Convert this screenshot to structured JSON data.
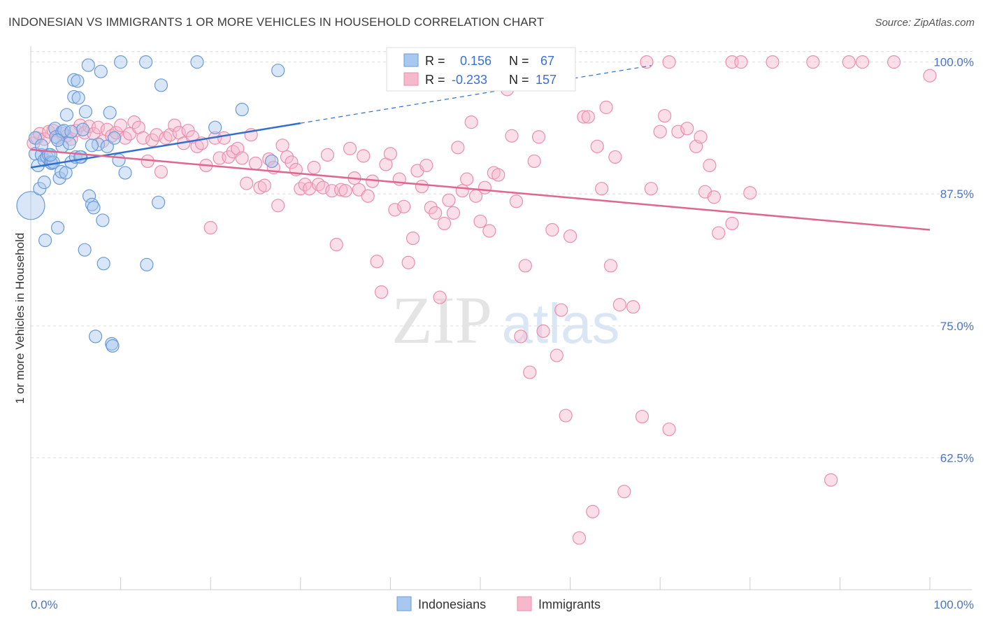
{
  "title": "INDONESIAN VS IMMIGRANTS 1 OR MORE VEHICLES IN HOUSEHOLD CORRELATION CHART",
  "source": "Source: ZipAtlas.com",
  "watermark": {
    "zip": "ZIP",
    "atlas": "atlas"
  },
  "colors": {
    "blue_fill": "#a9c8f0",
    "blue_stroke": "#6a9ad8",
    "blue_line": "#2f6fd0",
    "pink_fill": "#f6b8cb",
    "pink_stroke": "#ea8eab",
    "pink_line": "#e0668f",
    "grid": "#dddddd",
    "label_blue": "#4a74c9"
  },
  "stats": {
    "blue": {
      "r_label": "R =",
      "r_value": "0.156",
      "n_label": "N =",
      "n_value": "67"
    },
    "pink": {
      "r_label": "R =",
      "r_value": "-0.233",
      "n_label": "N =",
      "n_value": "157"
    }
  },
  "chart_data": {
    "type": "scatter",
    "title": "INDONESIAN VS IMMIGRANTS 1 OR MORE VEHICLES IN HOUSEHOLD CORRELATION CHART",
    "xlabel": "",
    "ylabel": "1 or more Vehicles in Household",
    "xlim": [
      0,
      100
    ],
    "ylim": [
      50,
      101.5
    ],
    "x_tick_labels": [
      "0.0%",
      "100.0%"
    ],
    "y_ticks": [
      62.5,
      75.0,
      87.5,
      100.0
    ],
    "y_tick_labels": [
      "62.5%",
      "75.0%",
      "87.5%",
      "100.0%"
    ],
    "grid": true,
    "legend_position": "bottom-center",
    "series": [
      {
        "name": "Indonesians",
        "trend": {
          "x": [
            0,
            30
          ],
          "y": [
            90.0,
            94.2
          ],
          "dashed_to": [
            69,
            100
          ]
        },
        "points": [
          [
            0,
            86.4
          ],
          [
            0.5,
            92.8
          ],
          [
            0.5,
            91.3
          ],
          [
            0.8,
            90.2
          ],
          [
            1.0,
            88.0
          ],
          [
            1.2,
            91.2
          ],
          [
            1.5,
            90.7
          ],
          [
            1.5,
            88.6
          ],
          [
            1.6,
            83.1
          ],
          [
            1.8,
            91.0
          ],
          [
            2.0,
            91.2
          ],
          [
            2.2,
            90.5
          ],
          [
            2.3,
            90.4
          ],
          [
            2.5,
            90.5
          ],
          [
            2.7,
            93.7
          ],
          [
            2.8,
            92.9
          ],
          [
            3.0,
            84.3
          ],
          [
            3.2,
            89.0
          ],
          [
            3.4,
            89.6
          ],
          [
            3.5,
            93.4
          ],
          [
            3.5,
            92.0
          ],
          [
            3.7,
            93.5
          ],
          [
            3.9,
            89.5
          ],
          [
            4.0,
            95.0
          ],
          [
            4.3,
            92.3
          ],
          [
            4.5,
            90.5
          ],
          [
            4.8,
            96.7
          ],
          [
            4.8,
            98.3
          ],
          [
            5.0,
            91.0
          ],
          [
            5.2,
            98.2
          ],
          [
            5.3,
            96.6
          ],
          [
            5.6,
            91.0
          ],
          [
            5.8,
            93.6
          ],
          [
            6.0,
            82.2
          ],
          [
            6.1,
            95.3
          ],
          [
            6.4,
            99.7
          ],
          [
            6.5,
            87.3
          ],
          [
            6.8,
            86.5
          ],
          [
            7.0,
            86.2
          ],
          [
            7.2,
            74.0
          ],
          [
            7.5,
            92.2
          ],
          [
            7.8,
            99.1
          ],
          [
            8.0,
            85.0
          ],
          [
            8.1,
            80.9
          ],
          [
            8.5,
            92.0
          ],
          [
            8.8,
            95.2
          ],
          [
            9.0,
            73.3
          ],
          [
            9.1,
            73.1
          ],
          [
            9.3,
            92.8
          ],
          [
            9.8,
            90.7
          ],
          [
            10.0,
            100.0
          ],
          [
            10.5,
            89.5
          ],
          [
            12.8,
            100.0
          ],
          [
            12.9,
            80.8
          ],
          [
            14.2,
            86.7
          ],
          [
            14.5,
            97.8
          ],
          [
            18.5,
            100.0
          ],
          [
            20.5,
            93.8
          ],
          [
            23.5,
            95.5
          ],
          [
            26.8,
            90.6
          ],
          [
            27.5,
            99.2
          ],
          [
            4.5,
            93.4
          ],
          [
            3.0,
            92.6
          ],
          [
            2.2,
            91.2
          ],
          [
            1.2,
            92.1
          ],
          [
            5.5,
            91.0
          ],
          [
            6.8,
            92.1
          ]
        ]
      },
      {
        "name": "Immigrants",
        "trend": {
          "x": [
            0,
            100
          ],
          "y": [
            91.7,
            84.1
          ]
        },
        "points": [
          [
            0.3,
            92.3
          ],
          [
            0.7,
            92.8
          ],
          [
            1.0,
            93.2
          ],
          [
            1.5,
            92.7
          ],
          [
            2.0,
            93.4
          ],
          [
            2.5,
            93.5
          ],
          [
            3.0,
            92.8
          ],
          [
            3.5,
            93.2
          ],
          [
            4.0,
            93.0
          ],
          [
            4.5,
            92.7
          ],
          [
            5.0,
            93.5
          ],
          [
            5.5,
            94.0
          ],
          [
            6.0,
            93.3
          ],
          [
            6.5,
            93.9
          ],
          [
            7.0,
            93.2
          ],
          [
            7.5,
            93.8
          ],
          [
            8.0,
            92.5
          ],
          [
            8.5,
            93.6
          ],
          [
            9.0,
            93.0
          ],
          [
            9.5,
            93.3
          ],
          [
            10.0,
            94.0
          ],
          [
            10.5,
            92.8
          ],
          [
            11.0,
            93.2
          ],
          [
            11.5,
            94.3
          ],
          [
            12.0,
            93.8
          ],
          [
            12.5,
            92.8
          ],
          [
            13.0,
            90.6
          ],
          [
            13.5,
            92.6
          ],
          [
            14.0,
            93.1
          ],
          [
            14.5,
            89.6
          ],
          [
            15.0,
            92.8
          ],
          [
            15.5,
            93.1
          ],
          [
            16.0,
            94.0
          ],
          [
            16.5,
            93.3
          ],
          [
            17.0,
            92.3
          ],
          [
            17.5,
            93.5
          ],
          [
            18.0,
            92.9
          ],
          [
            18.5,
            92.0
          ],
          [
            19.0,
            92.3
          ],
          [
            19.5,
            90.2
          ],
          [
            20.0,
            84.3
          ],
          [
            20.5,
            92.8
          ],
          [
            21.0,
            90.9
          ],
          [
            21.5,
            92.8
          ],
          [
            22.0,
            91.0
          ],
          [
            22.5,
            91.5
          ],
          [
            23.0,
            91.8
          ],
          [
            23.5,
            90.9
          ],
          [
            24.0,
            88.5
          ],
          [
            24.5,
            93.1
          ],
          [
            25.0,
            90.4
          ],
          [
            25.5,
            88.1
          ],
          [
            26.0,
            88.3
          ],
          [
            26.5,
            90.8
          ],
          [
            27.0,
            90.0
          ],
          [
            27.5,
            86.4
          ],
          [
            28.0,
            92.1
          ],
          [
            28.5,
            91.0
          ],
          [
            29.0,
            90.5
          ],
          [
            29.5,
            89.8
          ],
          [
            30.0,
            88.0
          ],
          [
            30.5,
            88.4
          ],
          [
            31.0,
            88.0
          ],
          [
            31.5,
            90.0
          ],
          [
            32.0,
            88.4
          ],
          [
            32.5,
            88.1
          ],
          [
            33.0,
            91.2
          ],
          [
            33.5,
            87.8
          ],
          [
            34.0,
            82.7
          ],
          [
            34.5,
            87.9
          ],
          [
            35.0,
            87.8
          ],
          [
            35.5,
            91.8
          ],
          [
            36.0,
            89.0
          ],
          [
            36.5,
            87.9
          ],
          [
            37.0,
            91.1
          ],
          [
            37.5,
            87.3
          ],
          [
            38.0,
            88.7
          ],
          [
            38.5,
            81.1
          ],
          [
            39.0,
            78.2
          ],
          [
            39.5,
            90.3
          ],
          [
            40.0,
            91.3
          ],
          [
            40.5,
            86.0
          ],
          [
            41.0,
            88.9
          ],
          [
            41.5,
            86.3
          ],
          [
            42.0,
            81.0
          ],
          [
            42.5,
            83.3
          ],
          [
            43.0,
            89.7
          ],
          [
            43.5,
            88.2
          ],
          [
            44.0,
            90.2
          ],
          [
            44.5,
            86.2
          ],
          [
            45.0,
            85.7
          ],
          [
            45.5,
            77.7
          ],
          [
            46.0,
            84.7
          ],
          [
            46.5,
            86.9
          ],
          [
            47.0,
            85.7
          ],
          [
            47.5,
            91.9
          ],
          [
            48.0,
            87.8
          ],
          [
            48.5,
            88.9
          ],
          [
            49.0,
            94.3
          ],
          [
            49.5,
            87.3
          ],
          [
            50.0,
            84.9
          ],
          [
            50.5,
            88.1
          ],
          [
            51.0,
            84.0
          ],
          [
            51.5,
            89.5
          ],
          [
            52.0,
            89.3
          ],
          [
            53.0,
            97.4
          ],
          [
            53.5,
            93.0
          ],
          [
            54.0,
            86.8
          ],
          [
            54.5,
            74.0
          ],
          [
            55.0,
            80.7
          ],
          [
            55.5,
            70.6
          ],
          [
            56.0,
            90.6
          ],
          [
            56.5,
            92.9
          ],
          [
            57.0,
            74.5
          ],
          [
            58.0,
            84.1
          ],
          [
            58.5,
            72.2
          ],
          [
            59.0,
            76.5
          ],
          [
            59.5,
            66.5
          ],
          [
            60.0,
            83.5
          ],
          [
            61.0,
            54.9
          ],
          [
            61.5,
            94.8
          ],
          [
            62.0,
            94.8
          ],
          [
            62.5,
            57.4
          ],
          [
            63.0,
            92.0
          ],
          [
            63.5,
            88.0
          ],
          [
            64.0,
            95.7
          ],
          [
            64.5,
            80.7
          ],
          [
            65.0,
            91.0
          ],
          [
            65.5,
            77.0
          ],
          [
            66.0,
            59.3
          ],
          [
            67.0,
            76.8
          ],
          [
            68.0,
            66.4
          ],
          [
            68.5,
            100.0
          ],
          [
            69.0,
            88.0
          ],
          [
            70.0,
            93.4
          ],
          [
            70.5,
            94.9
          ],
          [
            71.0,
            65.2
          ],
          [
            72.0,
            93.4
          ],
          [
            73.0,
            93.7
          ],
          [
            74.0,
            92.0
          ],
          [
            74.5,
            92.9
          ],
          [
            75.0,
            87.7
          ],
          [
            75.5,
            90.2
          ],
          [
            76.0,
            87.2
          ],
          [
            76.5,
            83.8
          ],
          [
            78.0,
            84.7
          ],
          [
            80.0,
            87.6
          ],
          [
            87.0,
            100.0
          ],
          [
            89.0,
            60.4
          ],
          [
            91.0,
            100.0
          ],
          [
            96.0,
            100.0
          ],
          [
            100.0,
            98.7
          ],
          [
            71.0,
            100.0
          ],
          [
            78.0,
            100.0
          ],
          [
            79.0,
            100.0
          ],
          [
            82.5,
            100.0
          ],
          [
            92.5,
            100.0
          ]
        ]
      }
    ]
  },
  "legend": {
    "items": [
      "Indonesians",
      "Immigrants"
    ]
  }
}
